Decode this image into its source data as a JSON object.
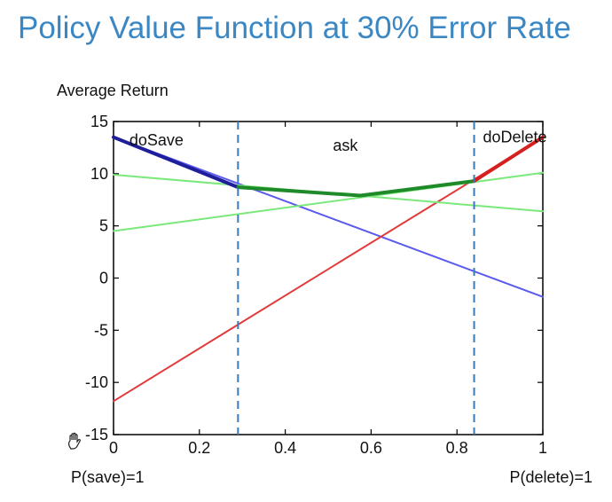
{
  "slide": {
    "title": "Policy Value Function at 30% Error Rate"
  },
  "labels": {
    "y_axis_top": "Average Return",
    "x_left": "P(save)=1",
    "x_right": "P(delete)=1"
  },
  "icons": {
    "cursor": "hand-cursor-icon"
  },
  "chart_data": {
    "type": "line",
    "title": "",
    "xlabel": "",
    "ylabel": "Average Return",
    "xlim": [
      0,
      1
    ],
    "ylim": [
      -15,
      15
    ],
    "xticks": [
      "0",
      "0.2",
      "0.4",
      "0.6",
      "0.8",
      "1"
    ],
    "yticks": [
      "15",
      "10",
      "5",
      "0",
      "-5",
      "-10",
      "-15"
    ],
    "xtick_values": [
      0,
      0.2,
      0.4,
      0.6,
      0.8,
      1
    ],
    "ytick_values": [
      15,
      10,
      5,
      0,
      -5,
      -10,
      -15
    ],
    "grid": false,
    "series": [
      {
        "values_x": [
          0,
          1
        ],
        "values_y": [
          13.5,
          -1.8
        ],
        "color": "#5a5aee"
      },
      {
        "values_x": [
          0,
          1
        ],
        "values_y": [
          -11.8,
          13.5
        ],
        "color": "#e23a3a"
      },
      {
        "values_x": [
          0,
          1
        ],
        "values_y": [
          9.9,
          6.4
        ],
        "color": "#7be87b"
      },
      {
        "values_x": [
          0,
          1
        ],
        "values_y": [
          4.5,
          10.1
        ],
        "color": "#7be87b"
      },
      {
        "values_x": [
          0,
          0.29
        ],
        "values_y": [
          13.5,
          8.7
        ],
        "color": "#1e1e9a",
        "width": 4
      },
      {
        "values_x": [
          0.29,
          0.575,
          0.84
        ],
        "values_y": [
          8.7,
          7.9,
          9.3
        ],
        "color": "#1f8a2a",
        "width": 4
      },
      {
        "values_x": [
          0.84,
          1
        ],
        "values_y": [
          9.3,
          13.5
        ],
        "color": "#d62020",
        "width": 4
      }
    ],
    "thresholds": [
      {
        "x": 0.29,
        "color": "#3a7ab8"
      },
      {
        "x": 0.84,
        "color": "#3a7ab8"
      }
    ],
    "regions": [
      {
        "label": "doSave",
        "x": 0.1,
        "y": 12.7
      },
      {
        "label": "ask",
        "x": 0.54,
        "y": 12.2
      },
      {
        "label": "doDelete",
        "x": 0.935,
        "y": 13.0
      }
    ]
  }
}
